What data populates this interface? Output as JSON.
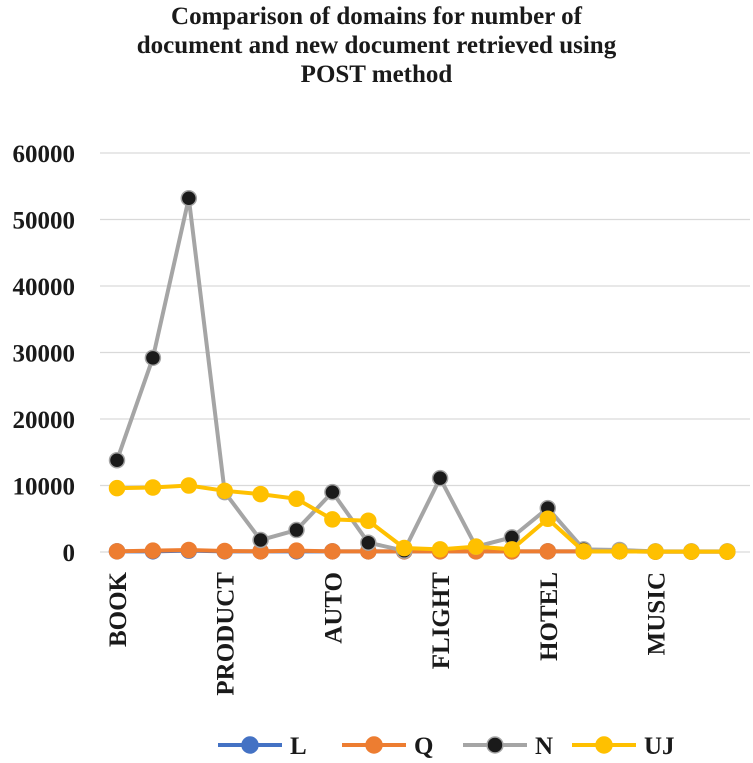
{
  "chart_data": {
    "type": "line",
    "title_lines": [
      "Comparison of domains for number of",
      "document and new document retrieved using",
      "POST method"
    ],
    "x_tick_labels": [
      {
        "index": 0,
        "label": "BOOK"
      },
      {
        "index": 3,
        "label": "PRODUCT"
      },
      {
        "index": 6,
        "label": "AUTO"
      },
      {
        "index": 9,
        "label": "FLIGHT"
      },
      {
        "index": 12,
        "label": "HOTEL"
      },
      {
        "index": 15,
        "label": "MUSIC"
      }
    ],
    "point_count": 18,
    "ylim": [
      0,
      60000
    ],
    "yticks": [
      0,
      10000,
      20000,
      30000,
      40000,
      50000,
      60000
    ],
    "grid": true,
    "legend_position": "bottom",
    "series": [
      {
        "name": "L",
        "color": "#4472C4",
        "values": [
          100,
          100,
          200,
          100,
          100,
          100,
          100,
          100,
          100,
          100,
          100,
          100,
          100,
          100,
          100,
          50,
          50,
          50
        ]
      },
      {
        "name": "Q",
        "color": "#ED7D31",
        "values": [
          100,
          200,
          300,
          150,
          100,
          200,
          100,
          100,
          100,
          100,
          100,
          100,
          100,
          100,
          100,
          50,
          50,
          50
        ]
      },
      {
        "name": "N",
        "color": "#A5A5A5",
        "marker_color": "#1a1a1a",
        "values": [
          13800,
          29200,
          53200,
          9000,
          1800,
          3300,
          9000,
          1400,
          200,
          11100,
          800,
          2200,
          6600,
          400,
          300,
          100,
          100,
          100
        ]
      },
      {
        "name": "UJ",
        "color": "#FFC000",
        "values": [
          9600,
          9700,
          10000,
          9200,
          8700,
          8000,
          4900,
          4700,
          600,
          400,
          800,
          400,
          5000,
          100,
          100,
          50,
          50,
          50
        ]
      }
    ]
  }
}
